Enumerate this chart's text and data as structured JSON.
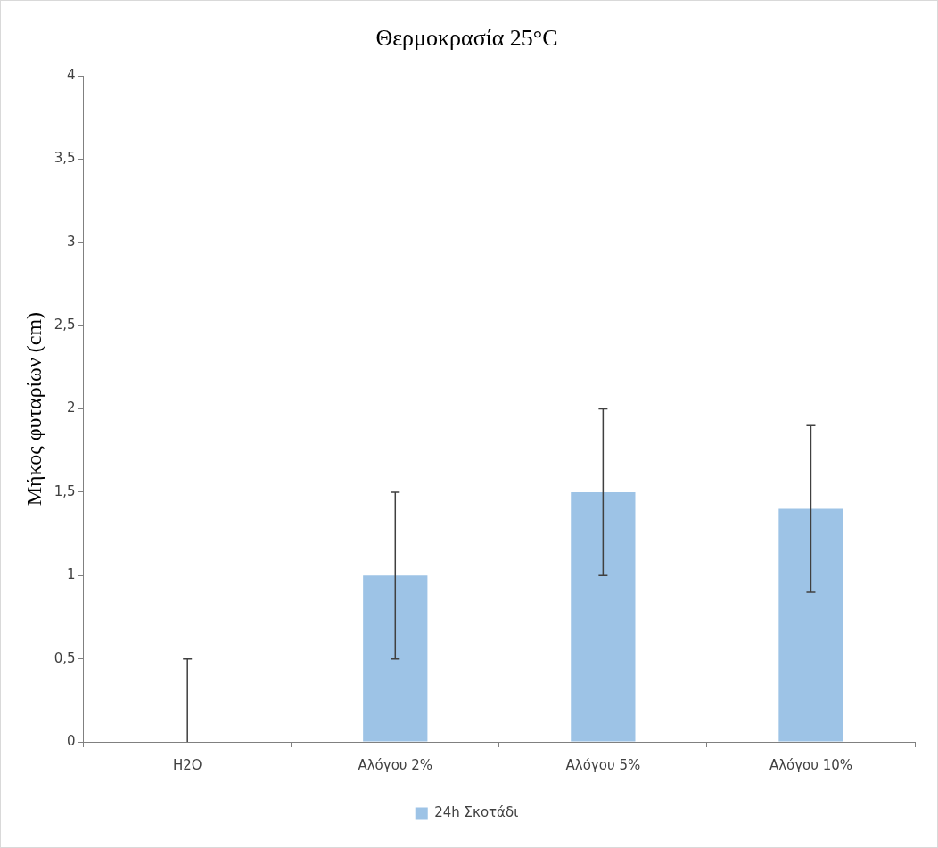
{
  "chart_data": {
    "type": "bar",
    "title": "Θερμοκρασία 25°C",
    "ylabel": "Μήκος φυταρίων (cm)",
    "categories": [
      "H2O",
      "Αλόγου 2%",
      "Αλόγου 5%",
      "Αλόγου 10%"
    ],
    "series": [
      {
        "name": "24h Σκοτάδι",
        "color": "#9dc3e6",
        "values": [
          0,
          1,
          1.5,
          1.4
        ],
        "errors": [
          [
            0,
            0.5
          ],
          [
            0.5,
            1.5
          ],
          [
            1,
            2
          ],
          [
            0.9,
            1.9
          ]
        ]
      }
    ],
    "ylim": [
      0,
      4
    ],
    "yticks": [
      0,
      {
        "value": 0.5,
        "label": "0,5"
      },
      1,
      {
        "value": 1.5,
        "label": "1,5"
      },
      2,
      {
        "value": 2.5,
        "label": "2,5"
      },
      3,
      {
        "value": 3.5,
        "label": "3,5"
      },
      4
    ],
    "grid": false,
    "legend": "bottom"
  }
}
